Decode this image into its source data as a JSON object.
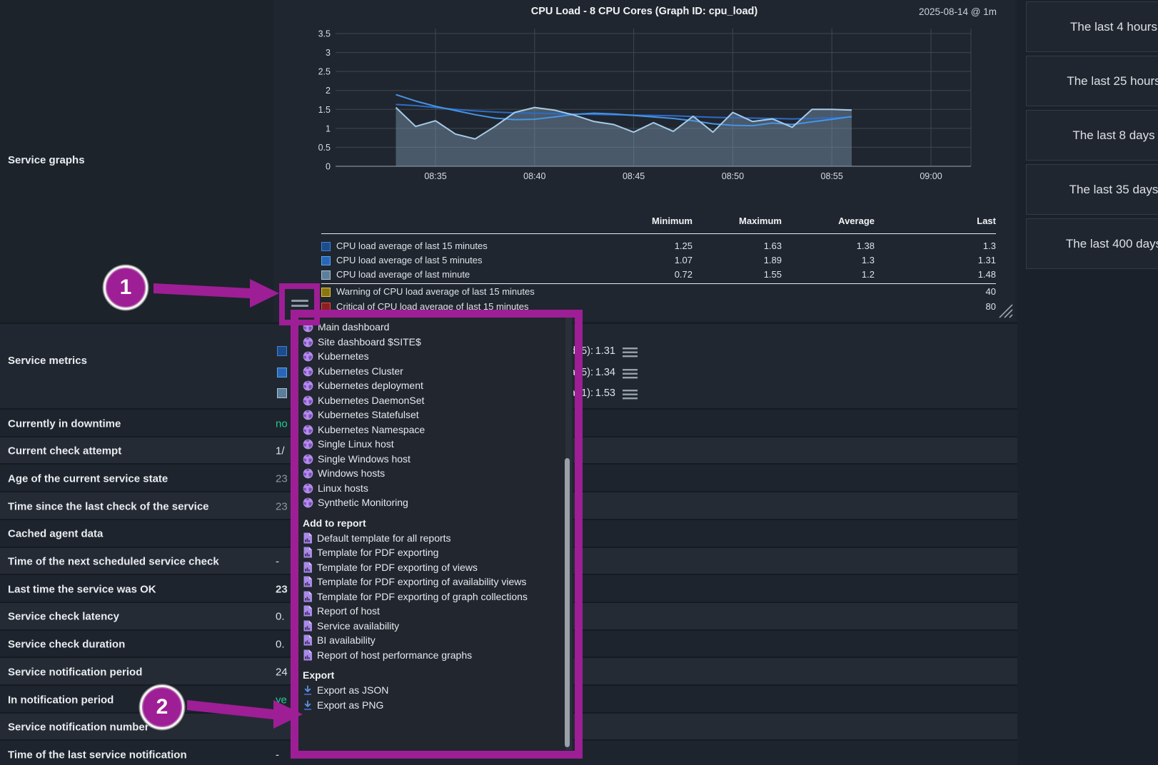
{
  "sections": {
    "graphs_label": "Service graphs",
    "metrics_label": "Service metrics"
  },
  "colors": {
    "annotation_magenta": "#9e1e96",
    "ok_green": "#1fcf93",
    "panel_bg": "#20262f",
    "page_bg": "#1b212a"
  },
  "graph_panel": {
    "title": "CPU Load - 8 CPU Cores (Graph ID: cpu_load)",
    "timestamp": "2025-08-14 @ 1m",
    "menu_button_icon": "hamburger-icon",
    "resize_handle_icon": "resize-grip-icon",
    "legend": {
      "headers": [
        "Minimum",
        "Maximum",
        "Average",
        "Last"
      ],
      "rows": [
        {
          "label": "CPU load average of last 15 minutes",
          "swatch_border": "#3f83d6",
          "swatch_fill": "#1d4c8c",
          "min": "1.25",
          "max": "1.63",
          "avg": "1.38",
          "last": "1.3"
        },
        {
          "label": "CPU load average of last 5 minutes",
          "swatch_border": "#58a6ec",
          "swatch_fill": "#2a66b8",
          "min": "1.07",
          "max": "1.89",
          "avg": "1.3",
          "last": "1.31"
        },
        {
          "label": "CPU load average of last minute",
          "swatch_border": "#a7c3d9",
          "swatch_fill": "#5c7e9a",
          "min": "0.72",
          "max": "1.55",
          "avg": "1.2",
          "last": "1.48"
        }
      ],
      "threshold_rows": [
        {
          "label": "Warning of CPU load average of last 15 minutes",
          "swatch_border": "#e3c53a",
          "swatch_fill": "#8a7514",
          "last": "40"
        },
        {
          "label": "Critical of CPU load average of last 15 minutes",
          "swatch_border": "#df4b4b",
          "swatch_fill": "#8c1f1f",
          "last": "80"
        }
      ]
    }
  },
  "chart_data": {
    "type": "area",
    "title": "CPU Load - 8 CPU Cores (Graph ID: cpu_load)",
    "xlabel": "",
    "ylabel": "",
    "x_ticks": [
      "08:35",
      "08:40",
      "08:45",
      "08:50",
      "08:55",
      "09:00"
    ],
    "y_ticks": [
      0,
      0.5,
      1,
      1.5,
      2,
      2.5,
      3,
      3.5
    ],
    "ylim": [
      0,
      3.75
    ],
    "grid": true,
    "legend_position": "bottom-table",
    "x_minutes": [
      33,
      34,
      35,
      36,
      37,
      38,
      39,
      40,
      41,
      42,
      43,
      44,
      45,
      46,
      47,
      48,
      49,
      50,
      51,
      52,
      53,
      54,
      55,
      56
    ],
    "series": [
      {
        "name": "CPU load average of last 15 minutes",
        "color": "#2d6cc8",
        "values": [
          1.63,
          1.6,
          1.55,
          1.5,
          1.46,
          1.43,
          1.41,
          1.4,
          1.39,
          1.38,
          1.37,
          1.36,
          1.35,
          1.34,
          1.33,
          1.31,
          1.29,
          1.28,
          1.27,
          1.26,
          1.25,
          1.26,
          1.28,
          1.3
        ]
      },
      {
        "name": "CPU load average of last 5 minutes",
        "color": "#4694e6",
        "values": [
          1.89,
          1.72,
          1.58,
          1.47,
          1.36,
          1.27,
          1.23,
          1.24,
          1.3,
          1.37,
          1.4,
          1.38,
          1.34,
          1.3,
          1.26,
          1.2,
          1.12,
          1.08,
          1.07,
          1.14,
          1.1,
          1.17,
          1.24,
          1.31
        ]
      },
      {
        "name": "CPU load average of last minute",
        "color": "#a6cbe8",
        "fill": "rgba(130,160,186,0.42)",
        "values": [
          1.55,
          1.05,
          1.2,
          0.85,
          0.72,
          1.05,
          1.42,
          1.55,
          1.48,
          1.35,
          1.18,
          1.1,
          0.9,
          1.15,
          0.92,
          1.32,
          0.9,
          1.42,
          1.18,
          1.25,
          1.03,
          1.5,
          1.5,
          1.48
        ]
      }
    ],
    "thresholds": [
      {
        "name": "Warning of CPU load average of last 15 minutes",
        "value": 40
      },
      {
        "name": "Critical of CPU load average of last 15 minutes",
        "value": 80
      }
    ]
  },
  "service_metrics": {
    "rows": [
      {
        "label": "CPU load average of last 15 minutes (load15):",
        "value": "1.31",
        "menu_icon": "hamburger-icon"
      },
      {
        "label": "CPU load average of last 5 minutes (load5):",
        "value": "1.34",
        "menu_icon": "hamburger-icon"
      },
      {
        "label": "CPU load average of last minute (load1):",
        "value": "1.53",
        "menu_icon": "hamburger-icon"
      }
    ]
  },
  "info_rows": [
    {
      "label": "Currently in downtime",
      "value": "no",
      "value_style": "green"
    },
    {
      "label": "Current check attempt",
      "value": "1/",
      "value_style": ""
    },
    {
      "label": "Age of the current service state",
      "value": "23",
      "value_style": "gray"
    },
    {
      "label": "Time since the last check of the service",
      "value": "23",
      "value_style": "gray"
    },
    {
      "label": "Cached agent data",
      "value": "",
      "value_style": ""
    },
    {
      "label": "Time of the next scheduled service check",
      "value": "-",
      "value_style": ""
    },
    {
      "label": "Last time the service was OK",
      "value": "23",
      "value_style": "bold"
    },
    {
      "label": "Service check latency",
      "value": "0.",
      "value_style": ""
    },
    {
      "label": "Service check duration",
      "value": "0.",
      "value_style": ""
    },
    {
      "label": "Service notification period",
      "value": "24",
      "value_style": ""
    },
    {
      "label": "In notification period",
      "value": "ye",
      "value_style": "green"
    },
    {
      "label": "Service notification number",
      "value": "",
      "value_style": ""
    },
    {
      "label": "Time of the last service notification",
      "value": "-",
      "value_style": ""
    }
  ],
  "menu": {
    "dashboard_items": [
      {
        "label": "Main dashboard",
        "icon": "globe-icon"
      },
      {
        "label": "Site dashboard $SITE$",
        "icon": "globe-icon"
      },
      {
        "label": "Kubernetes",
        "icon": "globe-icon"
      },
      {
        "label": "Kubernetes Cluster",
        "icon": "globe-icon"
      },
      {
        "label": "Kubernetes deployment",
        "icon": "globe-icon"
      },
      {
        "label": "Kubernetes DaemonSet",
        "icon": "globe-icon"
      },
      {
        "label": "Kubernetes Statefulset",
        "icon": "globe-icon"
      },
      {
        "label": "Kubernetes Namespace",
        "icon": "globe-icon"
      },
      {
        "label": "Single Linux host",
        "icon": "globe-icon"
      },
      {
        "label": "Single Windows host",
        "icon": "globe-icon"
      },
      {
        "label": "Windows hosts",
        "icon": "globe-icon"
      },
      {
        "label": "Linux hosts",
        "icon": "globe-icon"
      },
      {
        "label": "Synthetic Monitoring",
        "icon": "globe-icon"
      }
    ],
    "report_header": "Add to report",
    "report_items": [
      {
        "label": "Default template for all reports",
        "icon": "report-icon"
      },
      {
        "label": "Template for PDF exporting",
        "icon": "report-icon"
      },
      {
        "label": "Template for PDF exporting of views",
        "icon": "report-icon"
      },
      {
        "label": "Template for PDF exporting of availability views",
        "icon": "report-icon"
      },
      {
        "label": "Template for PDF exporting of graph collections",
        "icon": "report-icon"
      },
      {
        "label": "Report of host",
        "icon": "report-icon"
      },
      {
        "label": "Service availability",
        "icon": "report-icon"
      },
      {
        "label": "BI availability",
        "icon": "report-icon"
      },
      {
        "label": "Report of host performance graphs",
        "icon": "report-icon"
      }
    ],
    "export_header": "Export",
    "export_items": [
      {
        "label": "Export as JSON",
        "icon": "download-icon"
      },
      {
        "label": "Export as PNG",
        "icon": "download-icon"
      }
    ]
  },
  "time_ranges": [
    {
      "label": "The last 4 hours"
    },
    {
      "label": "The last 25 hours"
    },
    {
      "label": "The last 8 days"
    },
    {
      "label": "The last 35 days"
    },
    {
      "label": "The last 400 days"
    }
  ],
  "annotations": {
    "step1_label": "1",
    "step2_label": "2"
  }
}
